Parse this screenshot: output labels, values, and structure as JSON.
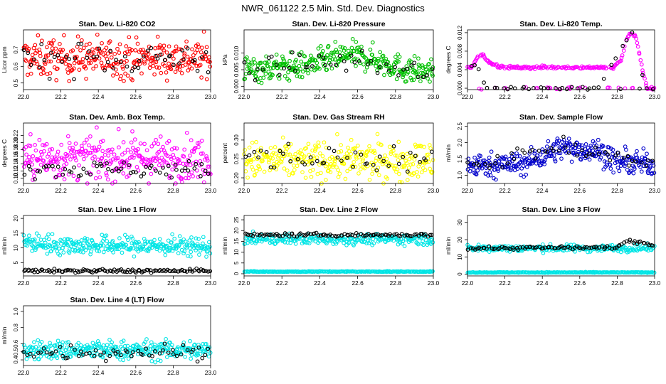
{
  "page_title": "NWR_061122  2.5 Min. Std. Dev. Diagnostics",
  "colors": {
    "reference": "#000000",
    "axis": "#000000"
  },
  "chart_data": [
    {
      "type": "scatter",
      "title": "Stan. Dev. Li-820 CO2",
      "xlabel": "",
      "ylabel": "Licor ppm",
      "xlim": [
        22.0,
        23.0
      ],
      "ylim": [
        0.46,
        0.82
      ],
      "xticks": [
        22.0,
        22.2,
        22.4,
        22.6,
        22.8,
        23.0
      ],
      "xtick_labels": [
        "22.0",
        "22.2",
        "22.4",
        "22.6",
        "22.8",
        "23.0"
      ],
      "yticks": [
        0.5,
        0.6,
        0.7
      ],
      "ytick_labels": [
        "0.5",
        "0.6",
        "0.7"
      ],
      "series": [
        {
          "name": "main",
          "color": "#ff0000",
          "trend": [
            [
              22.0,
              0.65
            ],
            [
              23.0,
              0.65
            ]
          ],
          "spread": 0.06,
          "n": 300
        },
        {
          "name": "reference",
          "color": "#000000",
          "trend": [
            [
              22.0,
              0.65
            ],
            [
              23.0,
              0.65
            ]
          ],
          "spread": 0.05,
          "n": 55
        }
      ]
    },
    {
      "type": "scatter",
      "title": "Stan. Dev. Li-820 Pressure",
      "xlabel": "",
      "ylabel": "kPa",
      "xlim": [
        22.0,
        23.0
      ],
      "ylim": [
        -0.001,
        0.017
      ],
      "xticks": [
        22.0,
        22.2,
        22.4,
        22.6,
        22.8,
        23.0
      ],
      "xtick_labels": [
        "22.0",
        "22.2",
        "22.4",
        "22.6",
        "22.8",
        "23.0"
      ],
      "yticks": [
        0.0,
        0.005,
        0.01
      ],
      "ytick_labels": [
        "0.000",
        "0.005",
        "0.010"
      ],
      "series": [
        {
          "name": "main",
          "color": "#00c000",
          "trend": [
            [
              22.0,
              0.005
            ],
            [
              22.3,
              0.006
            ],
            [
              22.45,
              0.008
            ],
            [
              22.55,
              0.0095
            ],
            [
              22.7,
              0.008
            ],
            [
              22.85,
              0.005
            ],
            [
              23.0,
              0.004
            ]
          ],
          "spread": 0.002,
          "n": 330
        },
        {
          "name": "reference",
          "color": "#000000",
          "trend": [
            [
              22.0,
              0.005
            ],
            [
              22.5,
              0.008
            ],
            [
              23.0,
              0.004
            ]
          ],
          "spread": 0.0015,
          "n": 45
        }
      ]
    },
    {
      "type": "scatter",
      "title": "Stan. Dev. Li-820 Temp.",
      "xlabel": "",
      "ylabel": "degrees C",
      "xlim": [
        22.0,
        23.0
      ],
      "ylim": [
        -0.0003,
        0.0126
      ],
      "xticks": [
        22.0,
        22.2,
        22.4,
        22.6,
        22.8,
        23.0
      ],
      "xtick_labels": [
        "22.0",
        "22.2",
        "22.4",
        "22.6",
        "22.8",
        "23.0"
      ],
      "yticks": [
        0.0,
        0.004,
        0.008,
        0.012
      ],
      "ytick_labels": [
        "0.000",
        "0.004",
        "0.008",
        "0.012"
      ],
      "series": [
        {
          "name": "main",
          "color": "#ff00ff",
          "points": [
            [
              22.02,
              0.0045
            ],
            [
              22.05,
              0.0065
            ],
            [
              22.08,
              0.0075
            ],
            [
              22.1,
              0.006
            ],
            [
              22.15,
              0.005
            ],
            [
              22.2,
              0.0045
            ],
            [
              22.3,
              0.0045
            ],
            [
              22.4,
              0.0045
            ],
            [
              22.5,
              0.0045
            ],
            [
              22.6,
              0.0045
            ],
            [
              22.7,
              0.0045
            ],
            [
              22.78,
              0.0045
            ],
            [
              22.82,
              0.006
            ],
            [
              22.84,
              0.009
            ],
            [
              22.86,
              0.0115
            ],
            [
              22.88,
              0.012
            ],
            [
              22.9,
              0.011
            ],
            [
              22.92,
              0.007
            ],
            [
              22.94,
              0.003
            ],
            [
              22.96,
              0.0
            ],
            [
              23.0,
              0.0
            ]
          ],
          "n": 220
        },
        {
          "name": "reference",
          "color": "#000000",
          "points": [
            [
              22.05,
              0.005
            ],
            [
              22.1,
              0.0
            ],
            [
              22.3,
              0.0
            ],
            [
              22.5,
              0.0
            ],
            [
              22.7,
              0.0
            ],
            [
              22.85,
              0.0105
            ],
            [
              22.88,
              0.012
            ],
            [
              22.95,
              0.0
            ],
            [
              23.0,
              0.0
            ]
          ],
          "n": 40
        }
      ]
    },
    {
      "type": "scatter",
      "title": "Stan. Dev. Amb. Box Temp.",
      "xlabel": "",
      "ylabel": "degrees C",
      "xlim": [
        22.0,
        23.0
      ],
      "ylim": [
        0.085,
        0.255
      ],
      "xticks": [
        22.0,
        22.2,
        22.4,
        22.6,
        22.8,
        23.0
      ],
      "xtick_labels": [
        "22.0",
        "22.2",
        "22.4",
        "22.6",
        "22.8",
        "23.0"
      ],
      "yticks": [
        0.1,
        0.12,
        0.14,
        0.16,
        0.18,
        0.2,
        0.22
      ],
      "ytick_labels": [
        "0.10",
        "0.12",
        "0.14",
        "0.16",
        "0.18",
        "0.20",
        "0.22"
      ],
      "series": [
        {
          "name": "main",
          "color": "#ff00ff",
          "trend": [
            [
              22.0,
              0.155
            ],
            [
              23.0,
              0.155
            ]
          ],
          "spread": 0.03,
          "n": 320
        },
        {
          "name": "reference",
          "color": "#000000",
          "trend": [
            [
              22.0,
              0.125
            ],
            [
              23.0,
              0.125
            ]
          ],
          "spread": 0.012,
          "n": 60
        }
      ]
    },
    {
      "type": "scatter",
      "title": "Stan. Dev. Gas Stream RH",
      "xlabel": "",
      "ylabel": "percent",
      "xlim": [
        22.0,
        23.0
      ],
      "ylim": [
        0.185,
        0.345
      ],
      "xticks": [
        22.0,
        22.2,
        22.4,
        22.6,
        22.8,
        23.0
      ],
      "xtick_labels": [
        "22.0",
        "22.2",
        "22.4",
        "22.6",
        "22.8",
        "23.0"
      ],
      "yticks": [
        0.2,
        0.25,
        0.3
      ],
      "ytick_labels": [
        "0.20",
        "0.25",
        "0.30"
      ],
      "series": [
        {
          "name": "main",
          "color": "#ffff00",
          "trend": [
            [
              22.0,
              0.245
            ],
            [
              23.0,
              0.245
            ]
          ],
          "spread": 0.025,
          "n": 320
        },
        {
          "name": "reference",
          "color": "#000000",
          "trend": [
            [
              22.0,
              0.25
            ],
            [
              23.0,
              0.25
            ]
          ],
          "spread": 0.02,
          "n": 45
        }
      ]
    },
    {
      "type": "scatter",
      "title": "Stan. Dev. Sample Flow",
      "xlabel": "",
      "ylabel": "ml/min",
      "xlim": [
        22.0,
        23.0
      ],
      "ylim": [
        0.75,
        2.6
      ],
      "xticks": [
        22.0,
        22.2,
        22.4,
        22.6,
        22.8,
        23.0
      ],
      "xtick_labels": [
        "22.0",
        "22.2",
        "22.4",
        "22.6",
        "22.8",
        "23.0"
      ],
      "yticks": [
        1.0,
        1.5,
        2.0,
        2.5
      ],
      "ytick_labels": [
        "1.0",
        "1.5",
        "2.0",
        "2.5"
      ],
      "series": [
        {
          "name": "main",
          "color": "#0000cc",
          "trend": [
            [
              22.0,
              1.3
            ],
            [
              22.3,
              1.35
            ],
            [
              22.4,
              1.6
            ],
            [
              22.5,
              1.85
            ],
            [
              22.6,
              1.8
            ],
            [
              22.7,
              1.75
            ],
            [
              22.8,
              1.4
            ],
            [
              23.0,
              1.35
            ]
          ],
          "spread": 0.18,
          "n": 340
        },
        {
          "name": "reference",
          "color": "#000000",
          "trend": [
            [
              22.0,
              1.3
            ],
            [
              22.5,
              1.85
            ],
            [
              23.0,
              1.35
            ]
          ],
          "spread": 0.12,
          "n": 50
        }
      ]
    },
    {
      "type": "scatter",
      "title": "Stan. Dev. Line 1 Flow",
      "xlabel": "",
      "ylabel": "ml/min",
      "xlim": [
        22.0,
        23.0
      ],
      "ylim": [
        0.5,
        21
      ],
      "xticks": [
        22.0,
        22.2,
        22.4,
        22.6,
        22.8,
        23.0
      ],
      "xtick_labels": [
        "22.0",
        "22.2",
        "22.4",
        "22.6",
        "22.8",
        "23.0"
      ],
      "yticks": [
        5,
        10,
        15,
        20
      ],
      "ytick_labels": [
        "5",
        "10",
        "15",
        "20"
      ],
      "series": [
        {
          "name": "main",
          "color": "#00e5e5",
          "trend": [
            [
              22.0,
              12
            ],
            [
              22.2,
              11
            ],
            [
              23.0,
              10.5
            ]
          ],
          "spread": 1.6,
          "n": 320
        },
        {
          "name": "reference",
          "color": "#000000",
          "trend": [
            [
              22.0,
              2.2
            ],
            [
              23.0,
              2.2
            ]
          ],
          "spread": 0.3,
          "n": 110
        }
      ]
    },
    {
      "type": "scatter",
      "title": "Stan. Dev. Line 2 Flow",
      "xlabel": "",
      "ylabel": "ml/min",
      "xlim": [
        22.0,
        23.0
      ],
      "ylim": [
        -1,
        27
      ],
      "xticks": [
        22.0,
        22.2,
        22.4,
        22.6,
        22.8,
        23.0
      ],
      "xtick_labels": [
        "22.0",
        "22.2",
        "22.4",
        "22.6",
        "22.8",
        "23.0"
      ],
      "yticks": [
        0,
        5,
        10,
        15,
        20,
        25
      ],
      "ytick_labels": [
        "0",
        "5",
        "10",
        "15",
        "20",
        "25"
      ],
      "series": [
        {
          "name": "main",
          "color": "#00e5e5",
          "trend": [
            [
              22.0,
              16
            ],
            [
              23.0,
              16
            ]
          ],
          "spread": 1.2,
          "n": 260
        },
        {
          "name": "low band",
          "color": "#00e5e5",
          "trend": [
            [
              22.0,
              1
            ],
            [
              23.0,
              1
            ]
          ],
          "spread": 0.1,
          "n": 220
        },
        {
          "name": "reference",
          "color": "#000000",
          "trend": [
            [
              22.0,
              18
            ],
            [
              23.0,
              18
            ]
          ],
          "spread": 0.4,
          "n": 95
        }
      ]
    },
    {
      "type": "scatter",
      "title": "Stan. Dev. Line 3 Flow",
      "xlabel": "",
      "ylabel": "ml/min",
      "xlim": [
        22.0,
        23.0
      ],
      "ylim": [
        -1,
        34
      ],
      "xticks": [
        22.0,
        22.2,
        22.4,
        22.6,
        22.8,
        23.0
      ],
      "xtick_labels": [
        "22.0",
        "22.2",
        "22.4",
        "22.6",
        "22.8",
        "23.0"
      ],
      "yticks": [
        0,
        10,
        20,
        30
      ],
      "ytick_labels": [
        "0",
        "10",
        "20",
        "30"
      ],
      "series": [
        {
          "name": "main",
          "color": "#00e5e5",
          "trend": [
            [
              22.0,
              15
            ],
            [
              23.0,
              15
            ]
          ],
          "spread": 1.0,
          "n": 260
        },
        {
          "name": "low band",
          "color": "#00e5e5",
          "trend": [
            [
              22.0,
              1
            ],
            [
              23.0,
              1
            ]
          ],
          "spread": 0.1,
          "n": 220
        },
        {
          "name": "reference",
          "color": "#000000",
          "trend": [
            [
              22.0,
              15
            ],
            [
              22.8,
              15.5
            ],
            [
              22.85,
              19
            ],
            [
              23.0,
              17
            ]
          ],
          "spread": 0.5,
          "n": 90
        }
      ]
    },
    {
      "type": "scatter",
      "title": "Stan. Dev. Line 4 (LT) Flow",
      "xlabel": "",
      "ylabel": "ml/min",
      "xlim": [
        22.0,
        23.0
      ],
      "ylim": [
        0.33,
        1.07
      ],
      "xticks": [
        22.0,
        22.2,
        22.4,
        22.6,
        22.8,
        23.0
      ],
      "xtick_labels": [
        "22.0",
        "22.2",
        "22.4",
        "22.6",
        "22.8",
        "23.0"
      ],
      "yticks": [
        0.4,
        0.5,
        0.6,
        0.8,
        1.0
      ],
      "ytick_labels": [
        "0.4",
        "0.5",
        "0.6",
        "0.8",
        "1.0"
      ],
      "series": [
        {
          "name": "main",
          "color": "#00e5e5",
          "trend": [
            [
              22.0,
              0.52
            ],
            [
              23.0,
              0.52
            ]
          ],
          "spread": 0.06,
          "n": 320
        },
        {
          "name": "reference",
          "color": "#000000",
          "trend": [
            [
              22.0,
              0.5
            ],
            [
              23.0,
              0.5
            ]
          ],
          "spread": 0.05,
          "n": 60
        }
      ]
    }
  ]
}
